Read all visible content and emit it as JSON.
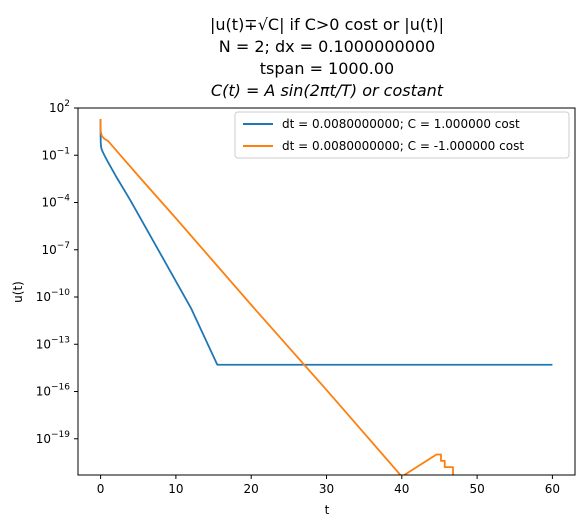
{
  "chart_data": {
    "type": "line",
    "title_lines": [
      "|u(t)∓√C| if C>0 cost or |u(t)|",
      "N = 2; dx = 0.1000000000",
      "tspan = 1000.00",
      "C(t) = A sin(2πt/T) or costant"
    ],
    "xlabel": "t",
    "ylabel": "u(t)",
    "xlim": [
      -3,
      63
    ],
    "ylim_log10": [
      -21.3,
      2
    ],
    "yscale": "log",
    "grid": false,
    "legend_position": "top-right",
    "xticks": [
      0,
      10,
      20,
      30,
      40,
      50,
      60
    ],
    "xtick_labels": [
      "0",
      "10",
      "20",
      "30",
      "40",
      "50",
      "60"
    ],
    "yticks_exp": [
      2,
      -1,
      -4,
      -7,
      -10,
      -13,
      -16,
      -19
    ],
    "ytick_base": "10",
    "ytick_exponents": [
      "2",
      "−1",
      "−4",
      "−7",
      "−10",
      "−13",
      "−16",
      "−19"
    ],
    "series": [
      {
        "name": "dt = 0.0080000000; C = 1.000000 cost",
        "color": "#1f77b4",
        "x": [
          0,
          0,
          0.02,
          0.05,
          0.1,
          0.2,
          0.5,
          1,
          2,
          4,
          8,
          12,
          15.5,
          20,
          30,
          40,
          50,
          60
        ],
        "log10_y": [
          1.3,
          0.3,
          -0.2,
          -0.4,
          -0.55,
          -0.7,
          -1.0,
          -1.45,
          -2.3,
          -3.9,
          -7.3,
          -10.7,
          -14.3,
          -14.3,
          -14.3,
          -14.3,
          -14.3,
          -14.3
        ]
      },
      {
        "name": "dt = 0.0080000000; C = -1.000000 cost",
        "color": "#ff7f0e",
        "x": [
          0,
          0,
          0.02,
          0.1,
          0.2,
          0.5,
          1,
          5,
          10,
          20,
          30,
          40,
          44.6,
          45.2,
          45.2,
          45.7,
          45.7,
          46.8,
          46.8
        ],
        "log10_y": [
          1.3,
          0.8,
          0.5,
          0.35,
          0.2,
          0.05,
          -0.1,
          -2.3,
          -5.0,
          -10.5,
          -15.9,
          -21.4,
          -20.0,
          -20.0,
          -20.4,
          -20.4,
          -20.8,
          -20.8,
          -22.5
        ]
      }
    ]
  }
}
